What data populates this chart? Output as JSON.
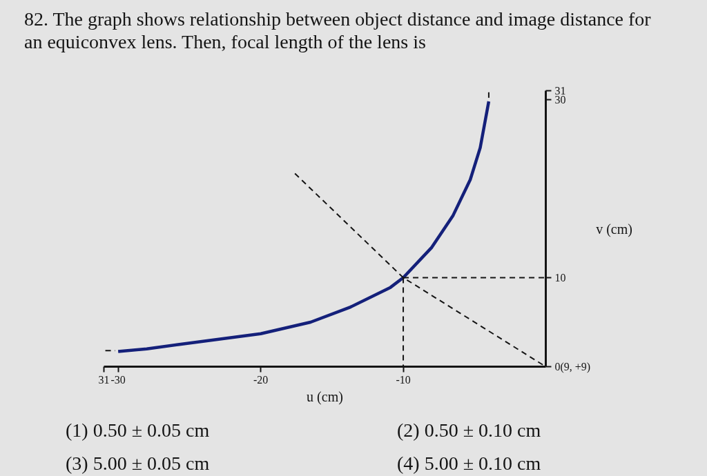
{
  "chart_data": {
    "type": "line",
    "title": "82. The graph shows relationship between object distance and image distance for an equiconvex lens. Then, focal length of the lens is",
    "xlabel": "u (cm)",
    "ylabel": "v (cm)",
    "annotations": [
      "(1) 0.50 ± 0.05 cm",
      "(2) 0.50 ± 0.10 cm",
      "(3) 5.00 ± 0.05 cm",
      "(4) 5.00 ± 0.10 cm"
    ],
    "xlim": [
      -31,
      0
    ],
    "ylim": [
      0,
      31
    ],
    "xticks": [
      {
        "value": -31,
        "label": "31"
      },
      -30,
      -20,
      -10
    ],
    "yticks": [
      {
        "value": 0,
        "label": "0(9, +9)"
      },
      10,
      30,
      31
    ],
    "series": [
      {
        "color": "#14207a",
        "line_style": "solid",
        "x": [
          -30,
          -28,
          -25.7,
          -20,
          -16.5,
          -13.7,
          -10.9,
          -10,
          -8.0,
          -6.5,
          -5.3,
          -4.6,
          -4.0
        ],
        "values": [
          1.7,
          2.0,
          2.5,
          3.7,
          5.0,
          6.7,
          8.9,
          10,
          13.4,
          17.0,
          21.0,
          24.6,
          29.8
        ]
      },
      {
        "color": "#141414",
        "line_style": "dashed",
        "x": [
          -30.9,
          -30.2
        ],
        "values": [
          1.8,
          1.8
        ]
      },
      {
        "color": "#141414",
        "line_style": "dashed",
        "x": [
          -4.0,
          -4.0
        ],
        "values": [
          30.2,
          30.9
        ]
      },
      {
        "color": "#141414",
        "line_style": "dashed",
        "x": [
          -17.6,
          -10,
          0
        ],
        "values": [
          21.7,
          10,
          0
        ]
      },
      {
        "color": "#141414",
        "line_style": "dashed",
        "x": [
          -10,
          0
        ],
        "values": [
          10,
          10
        ]
      },
      {
        "color": "#141414",
        "line_style": "dashed",
        "x": [
          -10,
          -10
        ],
        "values": [
          10,
          0
        ]
      }
    ]
  }
}
